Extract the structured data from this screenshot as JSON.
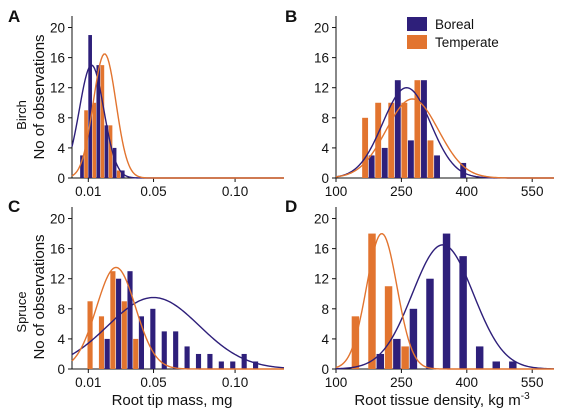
{
  "colors": {
    "boreal": "#2e1f7a",
    "temperate": "#e2742f",
    "axis": "#111111"
  },
  "row_labels": [
    "Birch",
    "Spruce"
  ],
  "y_axis_title": "No of observations",
  "x_axis_titles": {
    "left": "Root tip mass, mg",
    "right_main": "Root tissue density, kg m",
    "right_sup": "-3"
  },
  "legend": {
    "position": "top-left of panel B",
    "items": [
      {
        "label": "Boreal",
        "color": "#2e1f7a"
      },
      {
        "label": "Temperate",
        "color": "#e2742f"
      }
    ]
  },
  "chart_data": [
    {
      "panel": "A",
      "type": "bar",
      "title": "",
      "xlabel": "",
      "ylabel": "No of observations",
      "xlim": [
        0,
        0.13
      ],
      "ylim": [
        0,
        21
      ],
      "grid": false,
      "xticks": [
        0.01,
        0.05,
        0.1
      ],
      "xtick_labels": [
        "0.01",
        "0.05",
        "0.10"
      ],
      "yticks": [
        0,
        4,
        8,
        12,
        16,
        20
      ],
      "bin_width": 0.005,
      "series": [
        {
          "name": "Boreal",
          "bins": [
            0.005,
            0.01,
            0.015,
            0.02,
            0.025,
            0.03
          ],
          "values": [
            3,
            19,
            15,
            7,
            4,
            1
          ],
          "fit": {
            "mean": 0.012,
            "sd": 0.0075,
            "peak": 15
          }
        },
        {
          "name": "Temperate",
          "bins": [
            0.005,
            0.01,
            0.015,
            0.02,
            0.025,
            0.03
          ],
          "values": [
            0,
            9,
            10,
            15,
            7,
            1
          ],
          "fit": {
            "mean": 0.02,
            "sd": 0.007,
            "peak": 16.5
          }
        }
      ]
    },
    {
      "panel": "B",
      "type": "bar",
      "title": "",
      "xlabel": "",
      "ylabel": "",
      "xlim": [
        100,
        600
      ],
      "ylim": [
        0,
        21
      ],
      "grid": false,
      "xticks": [
        100,
        250,
        400,
        550
      ],
      "xtick_labels": [
        "100",
        "250",
        "400",
        "550"
      ],
      "yticks": [
        0,
        4,
        8,
        12,
        16,
        20
      ],
      "bin_width": 30,
      "series": [
        {
          "name": "Boreal",
          "bins": [
            175,
            205,
            235,
            265,
            295,
            325,
            355,
            385
          ],
          "values": [
            3,
            4,
            13,
            5,
            13,
            3,
            0,
            2
          ],
          "fit": {
            "mean": 262,
            "sd": 55,
            "peak": 12
          }
        },
        {
          "name": "Temperate",
          "bins": [
            175,
            205,
            235,
            265,
            295,
            325,
            355,
            385
          ],
          "values": [
            8,
            10,
            10,
            10,
            13,
            5,
            0,
            0
          ],
          "fit": {
            "mean": 275,
            "sd": 60,
            "peak": 10.5
          }
        }
      ]
    },
    {
      "panel": "C",
      "type": "bar",
      "title": "",
      "xlabel": "Root tip mass, mg",
      "ylabel": "No of observations",
      "xlim": [
        0,
        0.13
      ],
      "ylim": [
        0,
        21
      ],
      "grid": false,
      "xticks": [
        0.01,
        0.05,
        0.1
      ],
      "xtick_labels": [
        "0.01",
        "0.05",
        "0.10"
      ],
      "yticks": [
        0,
        4,
        8,
        12,
        16,
        20
      ],
      "bin_width": 0.007,
      "series": [
        {
          "name": "Boreal",
          "bins": [
            0.013,
            0.02,
            0.027,
            0.034,
            0.041,
            0.048,
            0.055,
            0.062,
            0.069,
            0.076,
            0.083,
            0.09,
            0.097,
            0.104,
            0.111
          ],
          "values": [
            0,
            4,
            12,
            13,
            7,
            8,
            5,
            5,
            3,
            2,
            2,
            1,
            1,
            2,
            1
          ],
          "fit": {
            "mean": 0.05,
            "sd": 0.028,
            "peak": 9.5
          }
        },
        {
          "name": "Temperate",
          "bins": [
            0.013,
            0.02,
            0.027,
            0.034,
            0.041,
            0.048,
            0.055,
            0.062,
            0.069,
            0.076,
            0.083,
            0.09,
            0.097,
            0.104,
            0.111
          ],
          "values": [
            9,
            7,
            13,
            9,
            4,
            0,
            0,
            0,
            0,
            0,
            0,
            0,
            0,
            0,
            0
          ],
          "fit": {
            "mean": 0.027,
            "sd": 0.012,
            "peak": 13.5
          }
        }
      ]
    },
    {
      "panel": "D",
      "type": "bar",
      "title": "",
      "xlabel": "Root tissue density, kg m-3",
      "ylabel": "",
      "xlim": [
        100,
        600
      ],
      "ylim": [
        0,
        21
      ],
      "grid": false,
      "xticks": [
        100,
        250,
        400,
        550
      ],
      "xtick_labels": [
        "100",
        "250",
        "400",
        "550"
      ],
      "yticks": [
        0,
        4,
        8,
        12,
        16,
        20
      ],
      "bin_width": 38,
      "series": [
        {
          "name": "Boreal",
          "bins": [
            155,
            193,
            231,
            269,
            307,
            345,
            383,
            421,
            459,
            497
          ],
          "values": [
            0,
            2,
            4,
            8,
            12,
            18,
            15,
            3,
            1,
            1
          ],
          "fit": {
            "mean": 345,
            "sd": 70,
            "peak": 16.5
          }
        },
        {
          "name": "Temperate",
          "bins": [
            155,
            193,
            231,
            269,
            307,
            345,
            383,
            421,
            459,
            497
          ],
          "values": [
            7,
            18,
            11,
            3,
            0,
            0,
            0,
            0,
            0,
            0
          ],
          "fit": {
            "mean": 205,
            "sd": 35,
            "peak": 18
          }
        }
      ]
    }
  ]
}
